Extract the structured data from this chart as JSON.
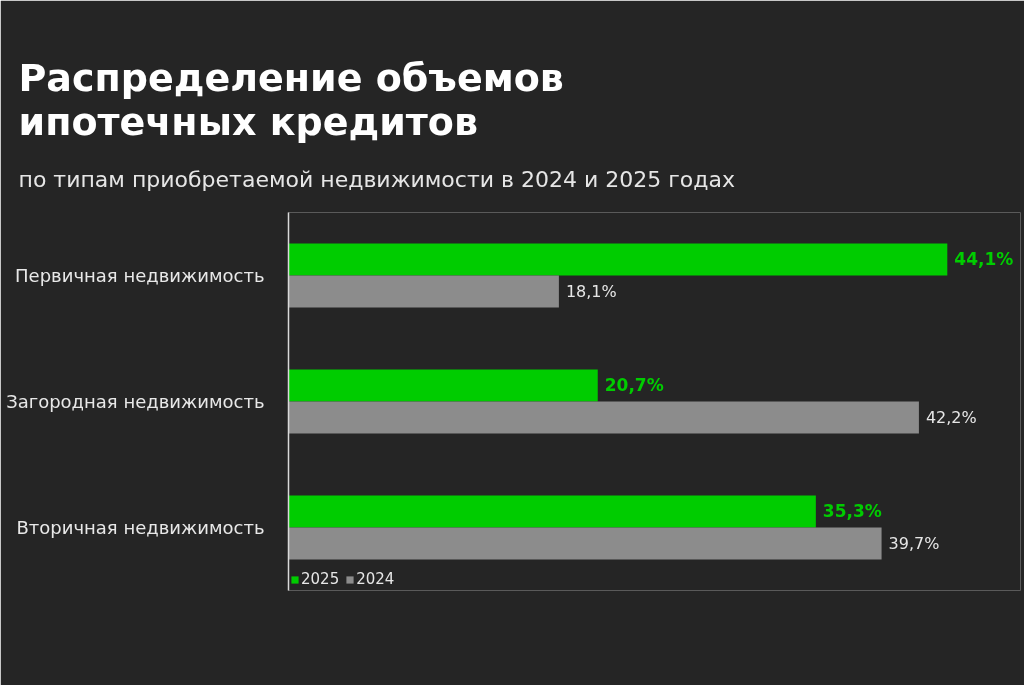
{
  "chart_data": {
    "type": "bar",
    "orientation": "horizontal",
    "title": "Распределение объемов ипотечных кредитов",
    "subtitle": "по типам приобретаемой недвижимости в 2024 и 2025 годах",
    "categories": [
      "Первичная недвижимость",
      "Загородная недвижимость",
      "Вторичная недвижимость"
    ],
    "series": [
      {
        "name": "2025",
        "color": "#00cc00",
        "values": [
          44.1,
          20.7,
          35.3
        ],
        "value_labels": [
          "44,1%",
          "20,7%",
          "35,3%"
        ]
      },
      {
        "name": "2024",
        "color": "#8c8c8c",
        "values": [
          18.1,
          42.2,
          39.7
        ],
        "value_labels": [
          "18,1%",
          "42,2%",
          "39,7%"
        ]
      }
    ],
    "xlim": [
      0,
      49
    ],
    "tick_labels": "y",
    "grid": false,
    "legend": "bottom left"
  }
}
